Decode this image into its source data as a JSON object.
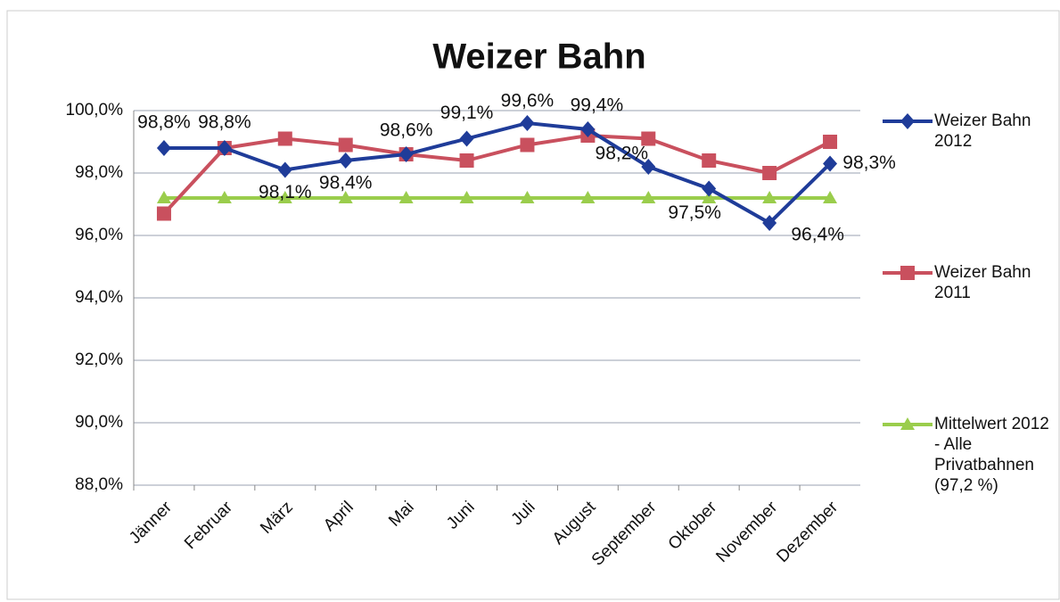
{
  "chart_data": {
    "type": "line",
    "title": "Weizer Bahn",
    "categories": [
      "Jänner",
      "Februar",
      "März",
      "April",
      "Mai",
      "Juni",
      "Juli",
      "August",
      "September",
      "Oktober",
      "November",
      "Dezember"
    ],
    "series": [
      {
        "name": "Weizer Bahn 2012",
        "color": "#1f3c99",
        "marker": "diamond",
        "values": [
          98.8,
          98.8,
          98.1,
          98.4,
          98.6,
          99.1,
          99.6,
          99.4,
          98.2,
          97.5,
          96.4,
          98.3
        ],
        "value_labels": [
          "98,8%",
          "98,8%",
          "98,1%",
          "98,4%",
          "98,6%",
          "99,1%",
          "99,6%",
          "99,4%",
          "98,2%",
          "97,5%",
          "96,4%",
          "98,3%"
        ]
      },
      {
        "name": "Weizer Bahn 2011",
        "color": "#c9505e",
        "marker": "square",
        "values": [
          96.7,
          98.8,
          99.1,
          98.9,
          98.6,
          98.4,
          98.9,
          99.2,
          99.1,
          98.4,
          98.0,
          99.0
        ]
      },
      {
        "name": "Mittelwert 2012 - Alle Privatbahnen (97,2 %)",
        "color": "#9acd4c",
        "marker": "triangle",
        "values": [
          97.2,
          97.2,
          97.2,
          97.2,
          97.2,
          97.2,
          97.2,
          97.2,
          97.2,
          97.2,
          97.2,
          97.2
        ]
      }
    ],
    "ylim": [
      88,
      100
    ],
    "yticks": [
      {
        "value": 88,
        "label": "88,0%"
      },
      {
        "value": 90,
        "label": "90,0%"
      },
      {
        "value": 92,
        "label": "92,0%"
      },
      {
        "value": 94,
        "label": "94,0%"
      },
      {
        "value": 96,
        "label": "96,0%"
      },
      {
        "value": 98,
        "label": "98,0%"
      },
      {
        "value": 100,
        "label": "100,0%"
      }
    ],
    "grid": true,
    "legend": "right"
  }
}
